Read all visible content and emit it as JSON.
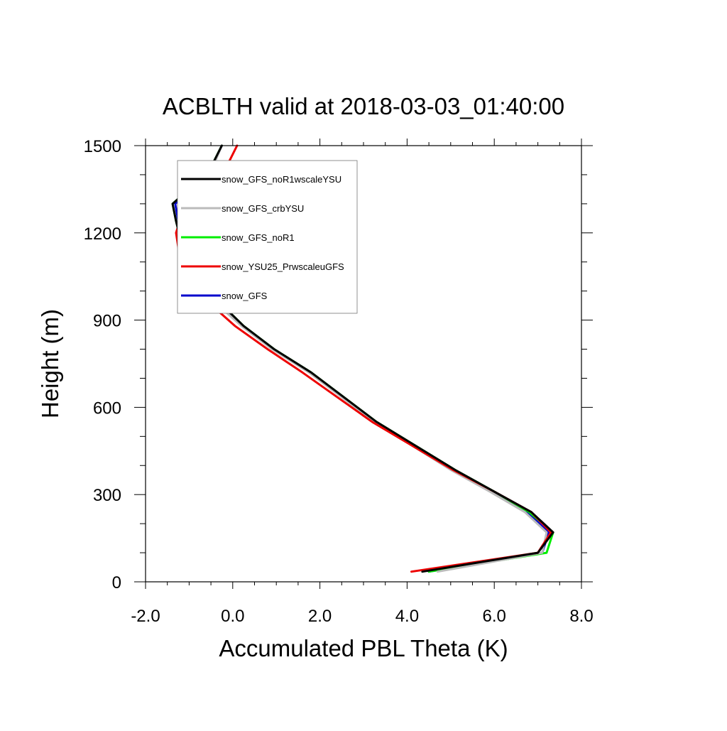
{
  "chart_data": {
    "type": "line",
    "title": "ACBLTH valid at 2018-03-03_01:40:00",
    "xlabel": "Accumulated PBL Theta (K)",
    "ylabel": "Height (m)",
    "xlim": [
      -2.0,
      8.0
    ],
    "ylim": [
      0,
      1500
    ],
    "xticks": [
      -2.0,
      0.0,
      2.0,
      4.0,
      6.0,
      8.0
    ],
    "xtick_labels": [
      "-2.0",
      "0.0",
      "2.0",
      "4.0",
      "6.0",
      "8.0"
    ],
    "yticks": [
      0,
      300,
      600,
      900,
      1200,
      1500
    ],
    "ytick_labels": [
      "0",
      "300",
      "600",
      "900",
      "1200",
      "1500"
    ],
    "grid": false,
    "legend_position": "top-left",
    "series": [
      {
        "name": "snow_GFS_noR1wscaleYSU",
        "color": "#000000",
        "x": [
          4.35,
          7.0,
          7.35,
          6.85,
          6.0,
          5.1,
          3.3,
          1.8,
          0.95,
          0.25,
          -0.3,
          -0.85,
          -1.1,
          -1.2,
          -1.3,
          -1.38,
          -0.55,
          -0.25
        ],
        "y": [
          35,
          100,
          170,
          240,
          310,
          385,
          550,
          720,
          800,
          880,
          960,
          1040,
          1110,
          1180,
          1240,
          1300,
          1410,
          1500
        ]
      },
      {
        "name": "snow_GFS_crbYSU",
        "color": "#bbbbbb",
        "x": [
          4.7,
          7.1,
          7.2,
          6.7,
          5.9,
          5.0,
          3.25,
          1.75,
          0.9,
          0.2,
          -0.4,
          -0.85,
          -1.1,
          -1.2,
          -1.22,
          -1.25,
          -0.5,
          -0.25
        ],
        "y": [
          35,
          100,
          170,
          240,
          310,
          385,
          550,
          720,
          800,
          880,
          960,
          1040,
          1110,
          1180,
          1240,
          1300,
          1410,
          1500
        ]
      },
      {
        "name": "snow_GFS_noR1",
        "color": "#00ee00",
        "x": [
          4.5,
          7.2,
          7.35,
          6.8,
          6.0,
          5.1,
          3.3,
          1.8,
          0.95,
          0.25,
          -0.3,
          -0.85,
          -1.1,
          -1.2,
          -1.3,
          -1.38,
          -0.55,
          -0.25
        ],
        "y": [
          35,
          100,
          170,
          240,
          310,
          385,
          550,
          720,
          800,
          880,
          960,
          1040,
          1110,
          1180,
          1240,
          1300,
          1410,
          1500
        ]
      },
      {
        "name": "snow_YSU25_PrwscaleuGFS",
        "color": "#ee0000",
        "x": [
          4.1,
          7.0,
          7.3,
          6.85,
          6.0,
          5.05,
          3.2,
          1.6,
          0.8,
          0.05,
          -0.55,
          -1.05,
          -1.15,
          -1.25,
          -1.3,
          -1.1,
          -0.2,
          0.1
        ],
        "y": [
          35,
          100,
          170,
          240,
          310,
          385,
          550,
          720,
          800,
          880,
          960,
          1040,
          1090,
          1150,
          1200,
          1300,
          1410,
          1500
        ]
      },
      {
        "name": "snow_GFS",
        "color": "#0000cc",
        "x": [
          4.5,
          7.1,
          7.25,
          6.75,
          5.95,
          5.05,
          3.28,
          1.78,
          0.93,
          0.23,
          -0.35,
          -0.85,
          -1.1,
          -1.2,
          -1.25,
          -1.32,
          -0.52,
          -0.25
        ],
        "y": [
          35,
          100,
          170,
          240,
          310,
          385,
          550,
          720,
          800,
          880,
          960,
          1040,
          1110,
          1180,
          1240,
          1300,
          1410,
          1500
        ]
      }
    ],
    "draw_order": [
      4,
      2,
      1,
      3,
      0
    ]
  }
}
